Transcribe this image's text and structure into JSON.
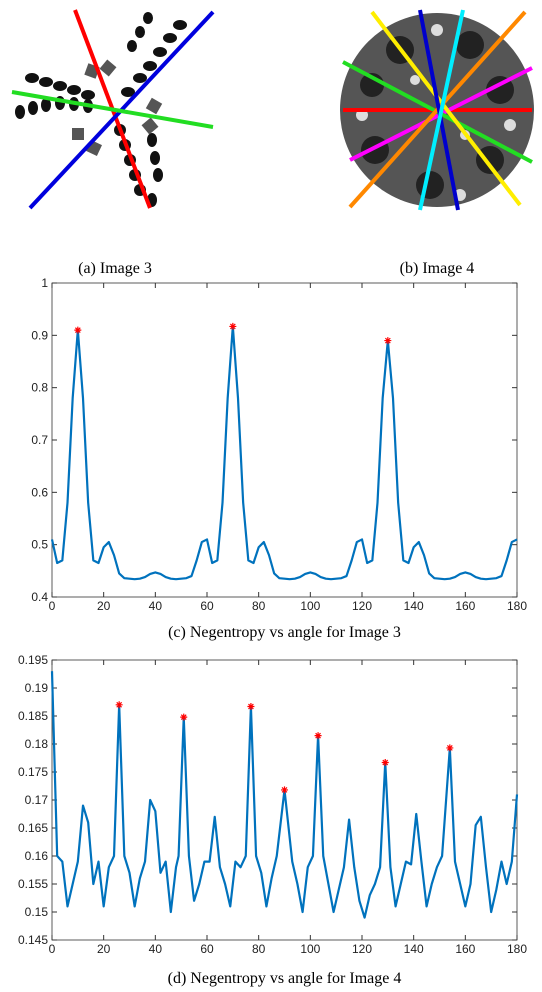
{
  "images": [
    {
      "caption": "(a) Image 3"
    },
    {
      "caption": "(b) Image 4"
    }
  ],
  "chart_data": [
    {
      "type": "line",
      "caption": "(c) Negentropy vs angle for Image 3",
      "x": [
        0,
        2,
        4,
        6,
        8,
        10,
        12,
        14,
        16,
        18,
        20,
        22,
        24,
        26,
        28,
        30,
        32,
        34,
        36,
        38,
        40,
        42,
        44,
        46,
        48,
        50,
        52,
        54,
        56,
        58,
        60,
        62,
        64,
        66,
        68,
        70,
        72,
        74,
        76,
        78,
        80,
        82,
        84,
        86,
        88,
        90,
        92,
        94,
        96,
        98,
        100,
        102,
        104,
        106,
        108,
        110,
        112,
        114,
        116,
        118,
        120,
        122,
        124,
        126,
        128,
        130,
        132,
        134,
        136,
        138,
        140,
        142,
        144,
        146,
        148,
        150,
        152,
        154,
        156,
        158,
        160,
        162,
        164,
        166,
        168,
        170,
        172,
        174,
        176,
        178,
        180
      ],
      "series": [
        {
          "color": "#0072bd",
          "values": [
            0.51,
            0.465,
            0.47,
            0.58,
            0.78,
            0.91,
            0.78,
            0.58,
            0.47,
            0.465,
            0.495,
            0.505,
            0.48,
            0.445,
            0.436,
            0.435,
            0.434,
            0.435,
            0.438,
            0.444,
            0.447,
            0.444,
            0.438,
            0.435,
            0.434,
            0.435,
            0.436,
            0.44,
            0.47,
            0.505,
            0.51,
            0.465,
            0.47,
            0.58,
            0.78,
            0.917,
            0.78,
            0.58,
            0.47,
            0.465,
            0.495,
            0.505,
            0.48,
            0.445,
            0.436,
            0.435,
            0.434,
            0.435,
            0.438,
            0.444,
            0.447,
            0.444,
            0.438,
            0.435,
            0.434,
            0.435,
            0.436,
            0.44,
            0.47,
            0.505,
            0.51,
            0.465,
            0.47,
            0.58,
            0.78,
            0.89,
            0.78,
            0.58,
            0.47,
            0.465,
            0.495,
            0.505,
            0.48,
            0.445,
            0.436,
            0.435,
            0.434,
            0.435,
            0.438,
            0.444,
            0.447,
            0.444,
            0.438,
            0.435,
            0.434,
            0.435,
            0.436,
            0.44,
            0.47,
            0.505,
            0.51
          ]
        },
        {
          "type": "scatter",
          "color": "#ff0000",
          "x": [
            10,
            70,
            130
          ],
          "values": [
            0.91,
            0.917,
            0.89
          ]
        }
      ],
      "xlim": [
        0,
        180
      ],
      "xticks": [
        0,
        20,
        40,
        60,
        80,
        100,
        120,
        140,
        160,
        180
      ],
      "ylim": [
        0.4,
        1
      ],
      "yticks": [
        0.4,
        0.5,
        0.6,
        0.7,
        0.8,
        0.9,
        1
      ]
    },
    {
      "type": "line",
      "caption": "(d) Negentropy vs angle for Image 4",
      "x": [
        0,
        2,
        4,
        6,
        8,
        10,
        12,
        14,
        16,
        18,
        20,
        22,
        24,
        26,
        28,
        30,
        32,
        34,
        36,
        38,
        40,
        42,
        44,
        46,
        48,
        49,
        51,
        53,
        55,
        57,
        59,
        61,
        63,
        65,
        67,
        69,
        71,
        73,
        75,
        77,
        79,
        81,
        83,
        85,
        87,
        90,
        93,
        95,
        97,
        99,
        101,
        103,
        105,
        107,
        109,
        111,
        113,
        115,
        117,
        119,
        121,
        123,
        125,
        127,
        129,
        131,
        133,
        135,
        137,
        139,
        141,
        143,
        145,
        147,
        149,
        151,
        154,
        156,
        158,
        160,
        162,
        164,
        166,
        168,
        170,
        172,
        174,
        176,
        178,
        180
      ],
      "series": [
        {
          "color": "#0072bd",
          "values": [
            0.193,
            0.16,
            0.159,
            0.151,
            0.155,
            0.159,
            0.169,
            0.166,
            0.155,
            0.159,
            0.151,
            0.158,
            0.16,
            0.187,
            0.16,
            0.157,
            0.151,
            0.156,
            0.159,
            0.17,
            0.168,
            0.157,
            0.159,
            0.15,
            0.158,
            0.16,
            0.1848,
            0.16,
            0.152,
            0.155,
            0.159,
            0.159,
            0.167,
            0.158,
            0.155,
            0.151,
            0.159,
            0.158,
            0.16,
            0.1867,
            0.16,
            0.157,
            0.151,
            0.156,
            0.16,
            0.1718,
            0.159,
            0.155,
            0.15,
            0.158,
            0.16,
            0.1815,
            0.16,
            0.155,
            0.15,
            0.154,
            0.158,
            0.1665,
            0.158,
            0.152,
            0.149,
            0.153,
            0.155,
            0.158,
            0.1767,
            0.158,
            0.151,
            0.155,
            0.159,
            0.1585,
            0.1675,
            0.159,
            0.151,
            0.155,
            0.158,
            0.16,
            0.1793,
            0.159,
            0.155,
            0.151,
            0.155,
            0.1655,
            0.167,
            0.158,
            0.15,
            0.154,
            0.159,
            0.155,
            0.159,
            0.171
          ]
        },
        {
          "type": "scatter",
          "color": "#ff0000",
          "x": [
            26,
            51,
            77,
            90,
            103,
            129,
            154
          ],
          "values": [
            0.187,
            0.1848,
            0.1867,
            0.1718,
            0.1815,
            0.1767,
            0.1793
          ]
        }
      ],
      "xlim": [
        0,
        180
      ],
      "xticks": [
        0,
        20,
        40,
        60,
        80,
        100,
        120,
        140,
        160,
        180
      ],
      "ylim": [
        0.145,
        0.195
      ],
      "yticks": [
        0.145,
        0.15,
        0.155,
        0.16,
        0.165,
        0.17,
        0.175,
        0.18,
        0.185,
        0.19,
        0.195
      ]
    }
  ]
}
